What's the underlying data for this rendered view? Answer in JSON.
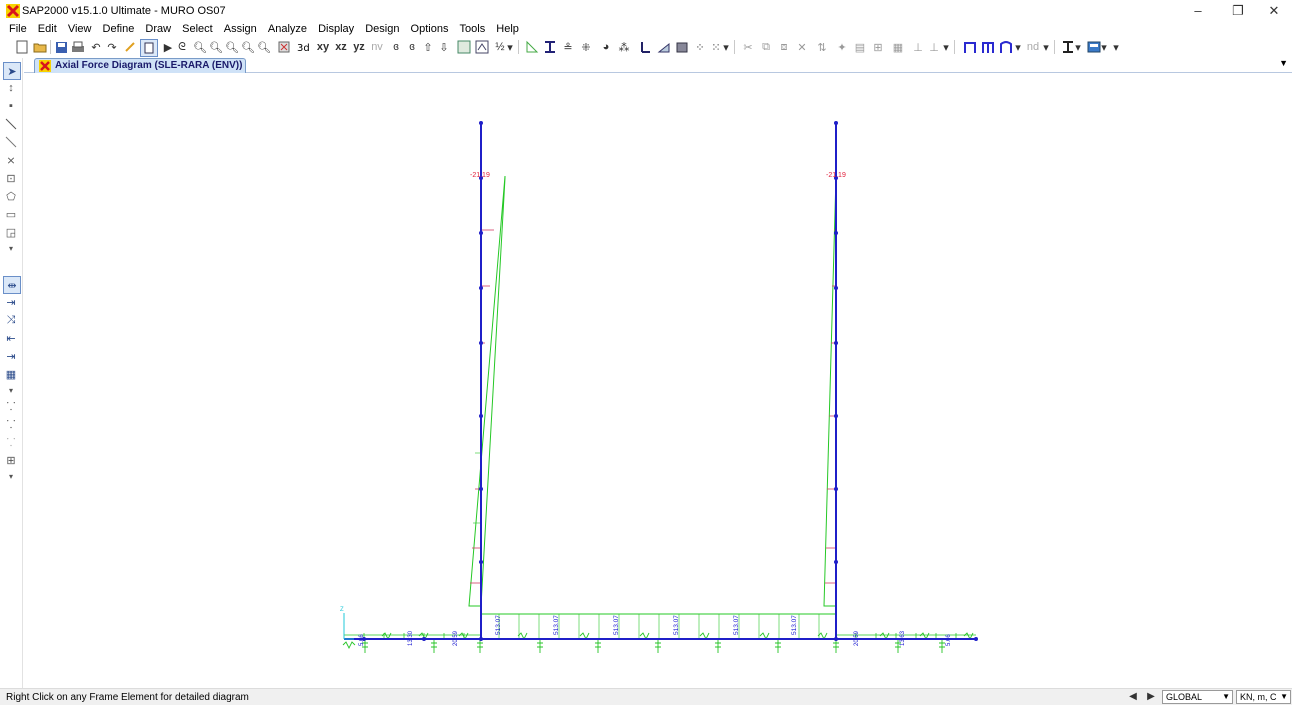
{
  "window": {
    "title": "SAP2000 v15.1.0 Ultimate  - MURO OS07",
    "minimize": "–",
    "restore": "❐",
    "close": "✕"
  },
  "menu": [
    "File",
    "Edit",
    "View",
    "Define",
    "Draw",
    "Select",
    "Assign",
    "Analyze",
    "Display",
    "Design",
    "Options",
    "Tools",
    "Help"
  ],
  "toolbar": {
    "view_labels": [
      "xy",
      "xz",
      "yz",
      "nv"
    ],
    "nd_label": "nd"
  },
  "tab": {
    "label": "Axial Force Diagram  (SLE-RARA (ENV))"
  },
  "diagram": {
    "column_top_labels": [
      "-21.19",
      "-21.19"
    ],
    "beam_labels": [
      "513.07",
      "513.07",
      "513.07",
      "513.07",
      "513.07",
      "513.07"
    ],
    "base_labels_left": [
      "5.66",
      "13.30",
      "20.59"
    ],
    "base_labels_right": [
      "20.59",
      "13.63",
      "5.66"
    ],
    "axis_label": "Z",
    "colors": {
      "frame": "#1f1fc8",
      "diagram_line": "#25c825",
      "hatch": "#d23c64",
      "value_text_red": "#e0203c",
      "value_text_blue": "#1a1ad2",
      "support": "#27c427"
    }
  },
  "status": {
    "message": "Right Click on any Frame Element for detailed diagram",
    "coord_system": "GLOBAL",
    "units": "KN, m, C"
  }
}
